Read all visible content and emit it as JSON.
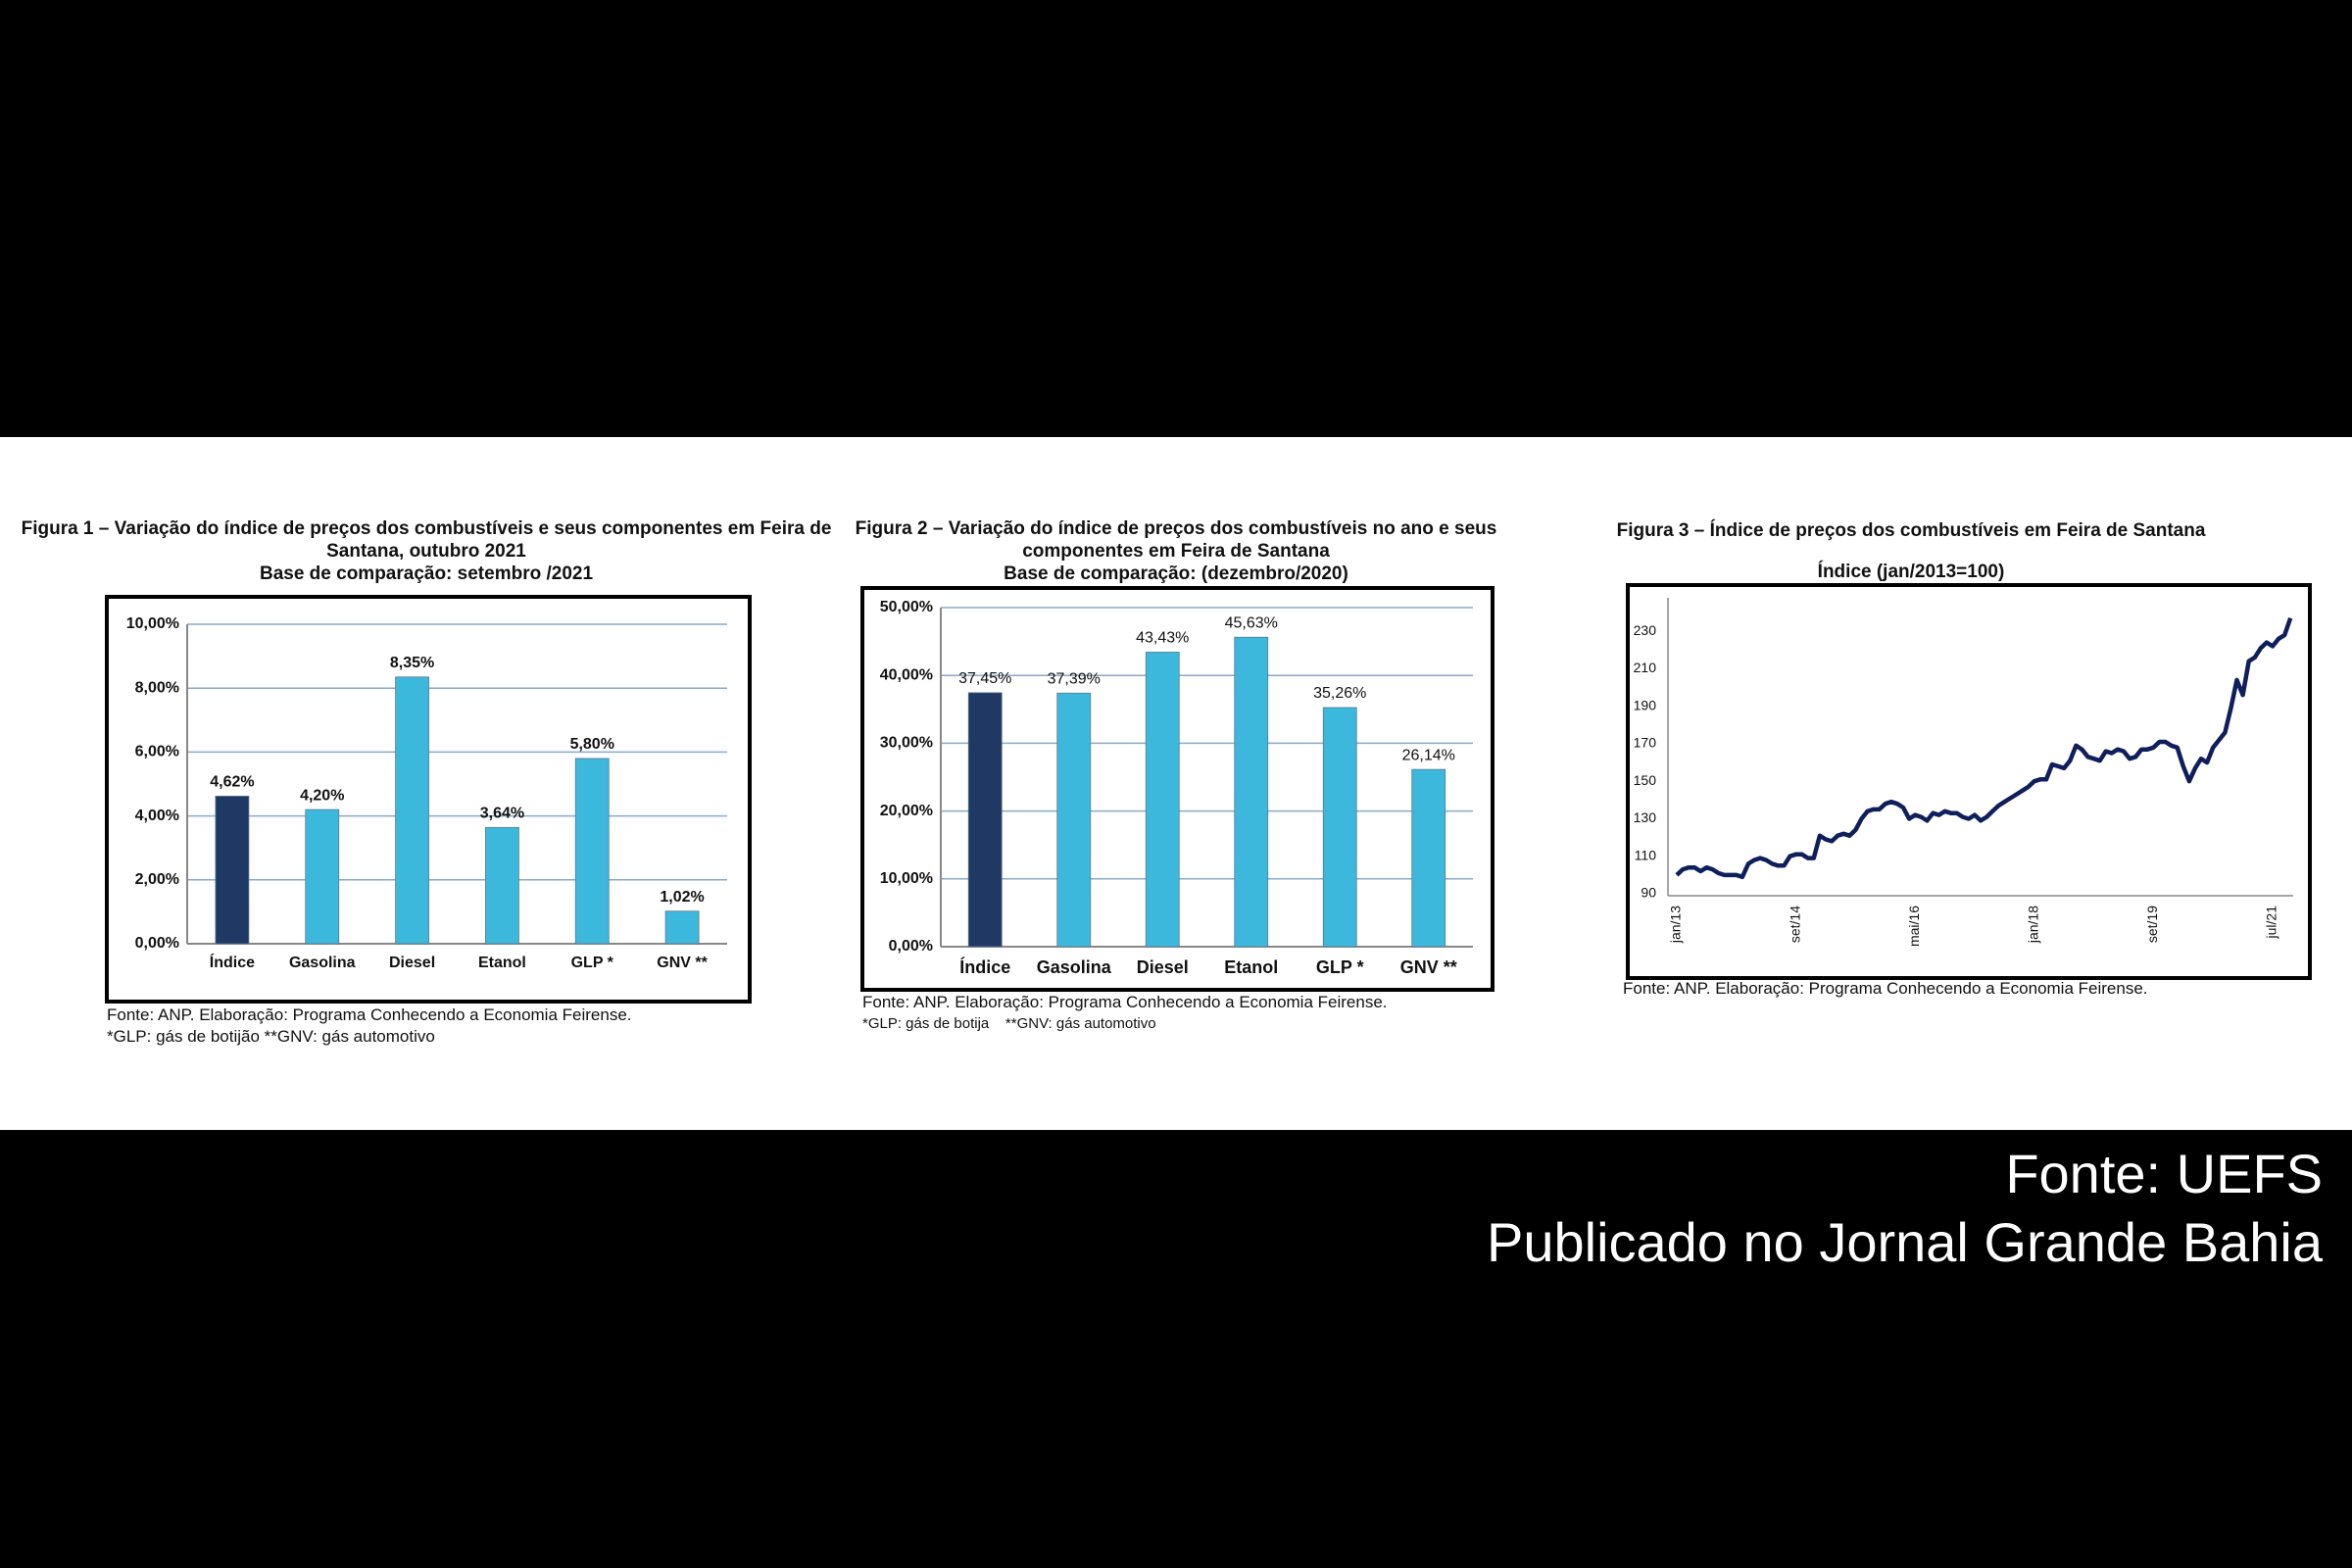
{
  "chart_data": [
    {
      "type": "bar",
      "title": "Figura 1 – Variação do índice de preços dos combustíveis e seus componentes em Feira de Santana, outubro 2021",
      "subtitle": "Base de comparação: setembro /2021",
      "categories": [
        "Índice",
        "Gasolina",
        "Diesel",
        "Etanol",
        "GLP *",
        "GNV **"
      ],
      "values": [
        4.62,
        4.2,
        8.35,
        3.64,
        5.8,
        1.02
      ],
      "value_labels": [
        "4,62%",
        "4,20%",
        "8,35%",
        "3,64%",
        "5,80%",
        "1,02%"
      ],
      "colors": [
        "#1f3864",
        "#3cb8dc",
        "#3cb8dc",
        "#3cb8dc",
        "#3cb8dc",
        "#3cb8dc"
      ],
      "ylim": [
        0,
        10
      ],
      "yticks": [
        {
          "value": 0,
          "label": "0,00%"
        },
        {
          "value": 2,
          "label": "2,00%"
        },
        {
          "value": 4,
          "label": "4,00%"
        },
        {
          "value": 6,
          "label": "6,00%"
        },
        {
          "value": 8,
          "label": "8,00%"
        },
        {
          "value": 10,
          "label": "10,00%"
        }
      ],
      "grid": true,
      "notes": [
        "Fonte: ANP. Elaboração: Programa Conhecendo a Economia Feirense.",
        "*GLP: gás de botijão **GNV: gás automotivo"
      ]
    },
    {
      "type": "bar",
      "title": "Figura 2 – Variação do índice de preços dos combustíveis no ano e seus componentes em Feira de Santana",
      "subtitle": "Base de comparação: (dezembro/2020)",
      "categories": [
        "Índice",
        "Gasolina",
        "Diesel",
        "Etanol",
        "GLP *",
        "GNV **"
      ],
      "values": [
        37.45,
        37.39,
        43.43,
        45.63,
        35.26,
        26.14
      ],
      "value_labels": [
        "37,45%",
        "37,39%",
        "43,43%",
        "45,63%",
        "35,26%",
        "26,14%"
      ],
      "colors": [
        "#1f3864",
        "#3cb8dc",
        "#3cb8dc",
        "#3cb8dc",
        "#3cb8dc",
        "#3cb8dc"
      ],
      "ylim": [
        0,
        50
      ],
      "yticks": [
        {
          "value": 0,
          "label": "0,00%"
        },
        {
          "value": 10,
          "label": "10,00%"
        },
        {
          "value": 20,
          "label": "20,00%"
        },
        {
          "value": 30,
          "label": "30,00%"
        },
        {
          "value": 40,
          "label": "40,00%"
        },
        {
          "value": 50,
          "label": "50,00%"
        }
      ],
      "grid": true,
      "notes": [
        "Fonte: ANP. Elaboração: Programa Conhecendo a Economia Feirense.",
        "*GLP: gás de botija    **GNV: gás automotivo"
      ]
    },
    {
      "type": "line",
      "title": "Figura 3 – Índice de preços dos combustíveis em Feira de Santana",
      "subtitle": "Índice (jan/2013=100)",
      "categories": [
        "jan/13",
        null,
        null,
        null,
        null,
        null,
        null,
        null,
        null,
        null,
        null,
        null,
        null,
        null,
        null,
        null,
        null,
        null,
        null,
        null,
        "set/14",
        null,
        null,
        null,
        null,
        null,
        null,
        null,
        null,
        null,
        null,
        null,
        null,
        null,
        null,
        null,
        null,
        null,
        null,
        null,
        "mai/16",
        null,
        null,
        null,
        null,
        null,
        null,
        null,
        null,
        null,
        null,
        null,
        null,
        null,
        null,
        null,
        null,
        null,
        null,
        null,
        "jan/18",
        null,
        null,
        null,
        null,
        null,
        null,
        null,
        null,
        null,
        null,
        null,
        null,
        null,
        null,
        null,
        null,
        null,
        null,
        null,
        "set/19",
        null,
        null,
        null,
        null,
        null,
        null,
        null,
        null,
        null,
        null,
        null,
        null,
        null,
        null,
        null,
        null,
        null,
        null,
        null,
        "jul/21",
        null,
        null,
        null
      ],
      "values": [
        100,
        103,
        104,
        104,
        102,
        104,
        103,
        101,
        100,
        100,
        100,
        99,
        106,
        108,
        109,
        108,
        106,
        105,
        105,
        110,
        111,
        111,
        109,
        109,
        121,
        119,
        118,
        121,
        122,
        121,
        124,
        130,
        134,
        135,
        135,
        138,
        139,
        138,
        136,
        130,
        132,
        131,
        129,
        133,
        132,
        134,
        133,
        133,
        131,
        130,
        132,
        129,
        131,
        134,
        137,
        139,
        141,
        143,
        145,
        147,
        150,
        151,
        151,
        159,
        158,
        157,
        161,
        169,
        167,
        163,
        162,
        161,
        166,
        165,
        167,
        166,
        162,
        163,
        167,
        167,
        168,
        171,
        171,
        169,
        168,
        158,
        150,
        157,
        162,
        160,
        168,
        172,
        176,
        189,
        204,
        196,
        214,
        216,
        221,
        224,
        222,
        226,
        228,
        237
      ],
      "color": "#0f1f5c",
      "ylim": [
        90,
        240
      ],
      "yticks": [
        90,
        110,
        130,
        150,
        170,
        190,
        210,
        230
      ],
      "grid": false,
      "notes": [
        "Fonte: ANP. Elaboração: Programa Conhecendo a Economia Feirense."
      ]
    }
  ],
  "footer": {
    "source": "Fonte: UEFS",
    "publisher": "Publicado no Jornal Grande Bahia"
  }
}
